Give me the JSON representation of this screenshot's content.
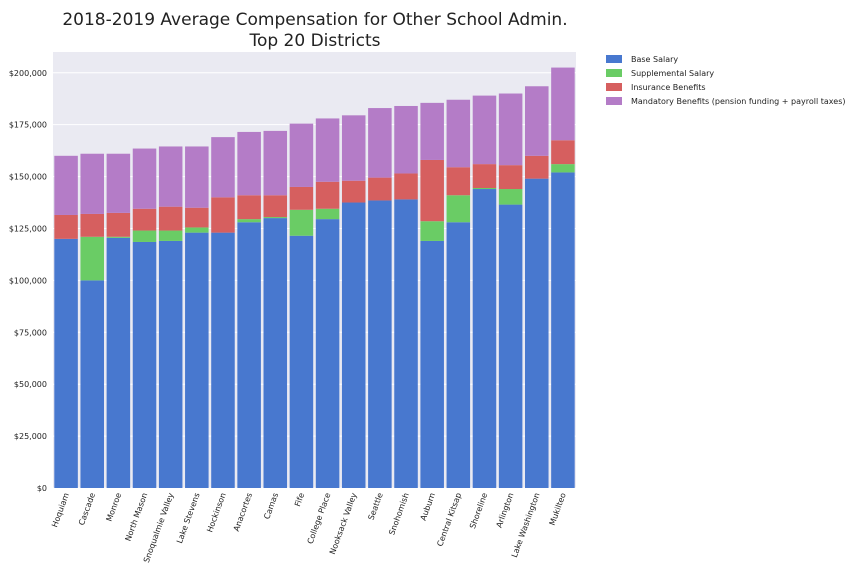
{
  "chart_data": {
    "type": "bar",
    "stacked": true,
    "title": [
      "2018-2019 Average Compensation for Other School Admin.",
      "Top 20 Districts"
    ],
    "xlabel": "",
    "ylabel": "",
    "ylim": [
      0,
      210000
    ],
    "yticks": [
      0,
      25000,
      50000,
      75000,
      100000,
      125000,
      150000,
      175000,
      200000
    ],
    "ytick_labels": [
      "$0",
      "$25,000",
      "$50,000",
      "$75,000",
      "$100,000",
      "$125,000",
      "$150,000",
      "$175,000",
      "$200,000"
    ],
    "grid": true,
    "legend_position": "outside-top-right",
    "categories": [
      "Hoquiam",
      "Cascade",
      "Monroe",
      "North Mason",
      "Snoqualmie Valley",
      "Lake Stevens",
      "Hockinson",
      "Anacortes",
      "Camas",
      "Fife",
      "College Place",
      "Nooksack Valley",
      "Seattle",
      "Snohomish",
      "Auburn",
      "Central Kitsap",
      "Shoreline",
      "Arlington",
      "Lake Washington",
      "Mukilteo"
    ],
    "series": [
      {
        "name": "Base Salary",
        "color": "#4878cf",
        "values": [
          120000,
          100000,
          120500,
          118500,
          119000,
          123000,
          123000,
          128000,
          130000,
          121500,
          129500,
          137500,
          138500,
          139000,
          119000,
          128000,
          144000,
          136500,
          149000,
          152000
        ]
      },
      {
        "name": "Supplemental Salary",
        "color": "#6acc65",
        "values": [
          0,
          21000,
          500,
          5500,
          5000,
          2500,
          0,
          1500,
          500,
          12500,
          5000,
          0,
          0,
          0,
          9500,
          13000,
          500,
          7500,
          0,
          4000
        ]
      },
      {
        "name": "Insurance Benefits",
        "color": "#d65f5f",
        "values": [
          11500,
          11000,
          11500,
          10500,
          11500,
          9500,
          17000,
          11500,
          10500,
          11000,
          13000,
          10500,
          11000,
          12500,
          29500,
          13500,
          11500,
          11500,
          11000,
          11500
        ]
      },
      {
        "name": "Mandatory Benefits (pension funding + payroll taxes)",
        "color": "#b47cc7",
        "values": [
          28500,
          29000,
          28500,
          29000,
          29000,
          29500,
          29000,
          30500,
          31000,
          30500,
          30500,
          31500,
          33500,
          32500,
          27500,
          32500,
          33000,
          34500,
          33500,
          35000
        ]
      }
    ]
  }
}
